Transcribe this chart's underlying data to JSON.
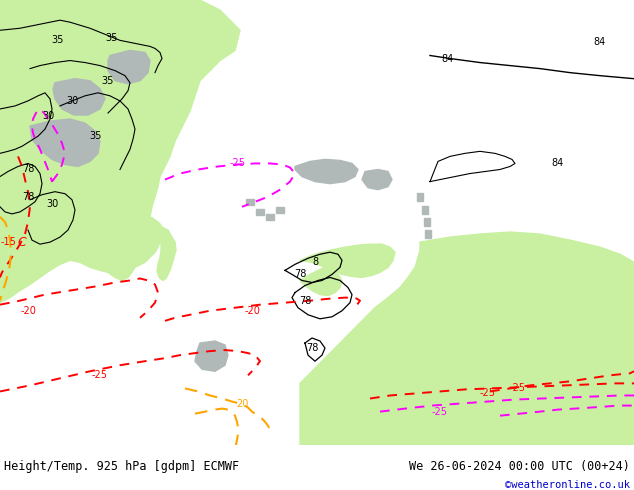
{
  "title_left": "Height/Temp. 925 hPa [gdpm] ECMWF",
  "title_right": "We 26-06-2024 00:00 UTC (00+24)",
  "credit": "©weatheronline.co.uk",
  "fig_width": 6.34,
  "fig_height": 4.9,
  "dpi": 100,
  "ocean_color": "#d2d2d2",
  "land_green": "#c8f0a0",
  "land_gray": "#b0b8b8",
  "bottom_bar_color": "#e0e0e0",
  "title_fontsize": 8.5,
  "credit_fontsize": 7.5,
  "credit_color": "#0000cc",
  "text_color": "#000000"
}
